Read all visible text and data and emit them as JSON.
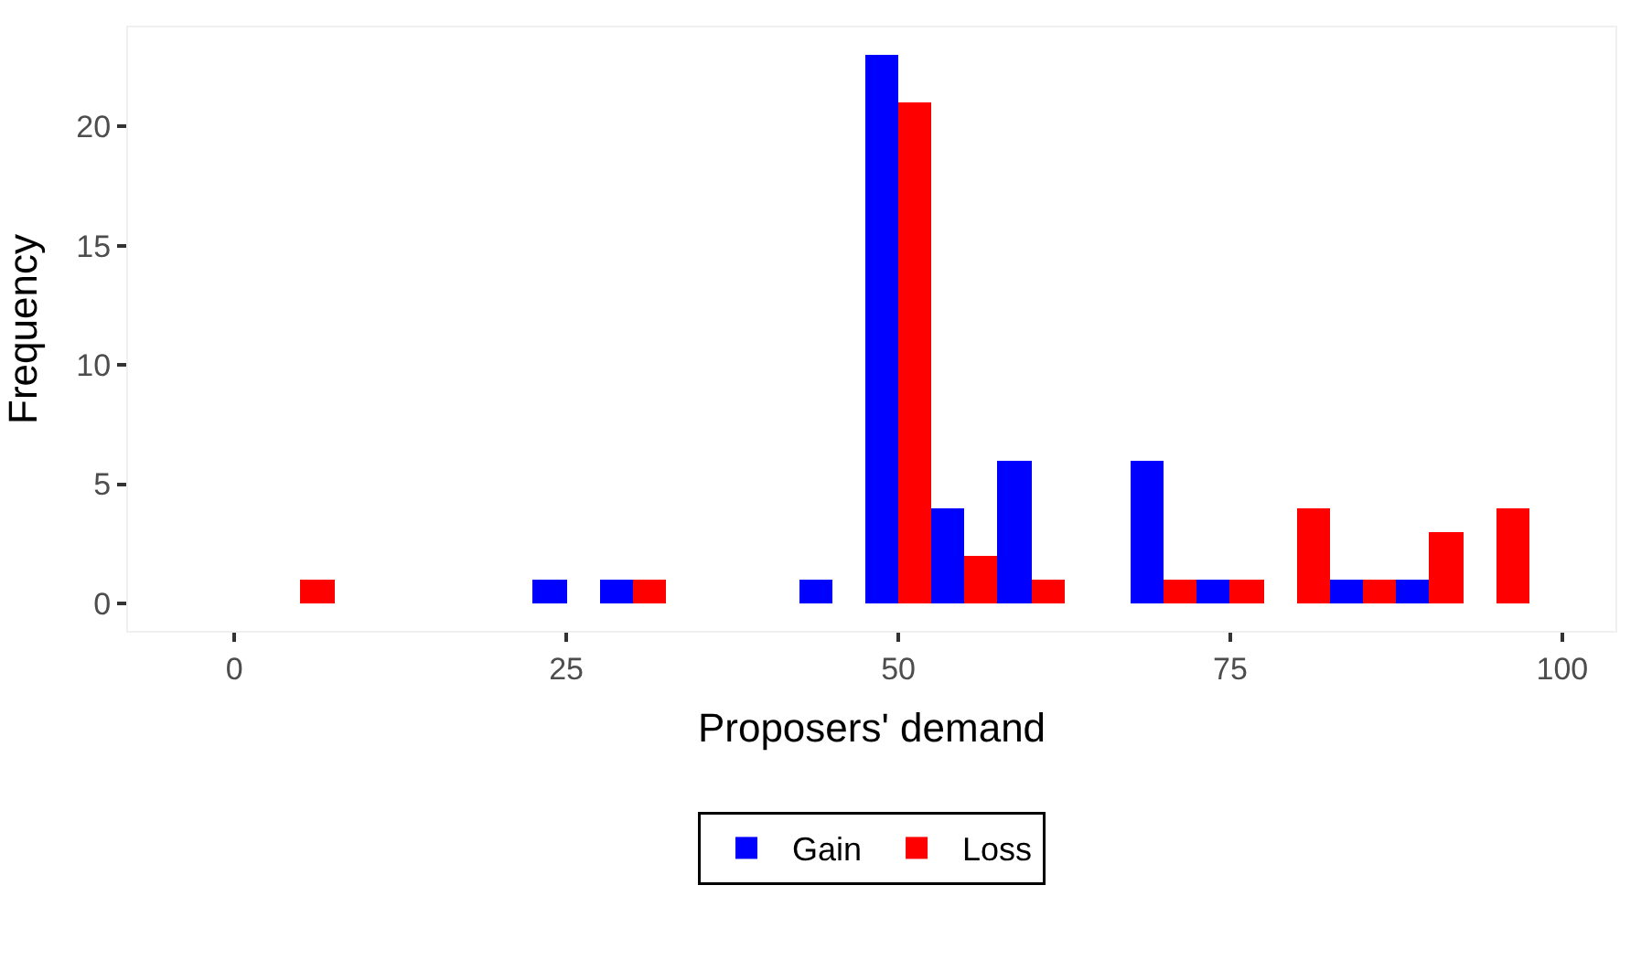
{
  "chart_data": {
    "type": "histogram",
    "xlabel": "Proposers' demand",
    "ylabel": "Frequency",
    "bins": [
      -2.5,
      2.5,
      7.5,
      12.5,
      17.5,
      22.5,
      27.5,
      32.5,
      37.5,
      42.5,
      47.5,
      52.5,
      57.5,
      62.5,
      67.5,
      72.5,
      77.5,
      82.5,
      87.5,
      92.5,
      97.5,
      102.5
    ],
    "series": [
      {
        "name": "Gain",
        "color": "#0000ff",
        "values": [
          0,
          0,
          0,
          0,
          0,
          1,
          1,
          0,
          0,
          1,
          23,
          4,
          6,
          0,
          6,
          1,
          0,
          1,
          1,
          0,
          0
        ]
      },
      {
        "name": "Loss",
        "color": "#ff0000",
        "values": [
          0,
          1,
          0,
          0,
          0,
          0,
          1,
          0,
          0,
          0,
          21,
          2,
          1,
          0,
          1,
          1,
          4,
          1,
          3,
          4,
          0
        ]
      }
    ],
    "xlim": [
      -8,
      104
    ],
    "xticks": [
      0,
      25,
      50,
      75,
      100
    ],
    "ylim": [
      -1.15,
      24.15
    ],
    "yticks": [
      0,
      5,
      10,
      15,
      20
    ],
    "legend": "bottom"
  }
}
